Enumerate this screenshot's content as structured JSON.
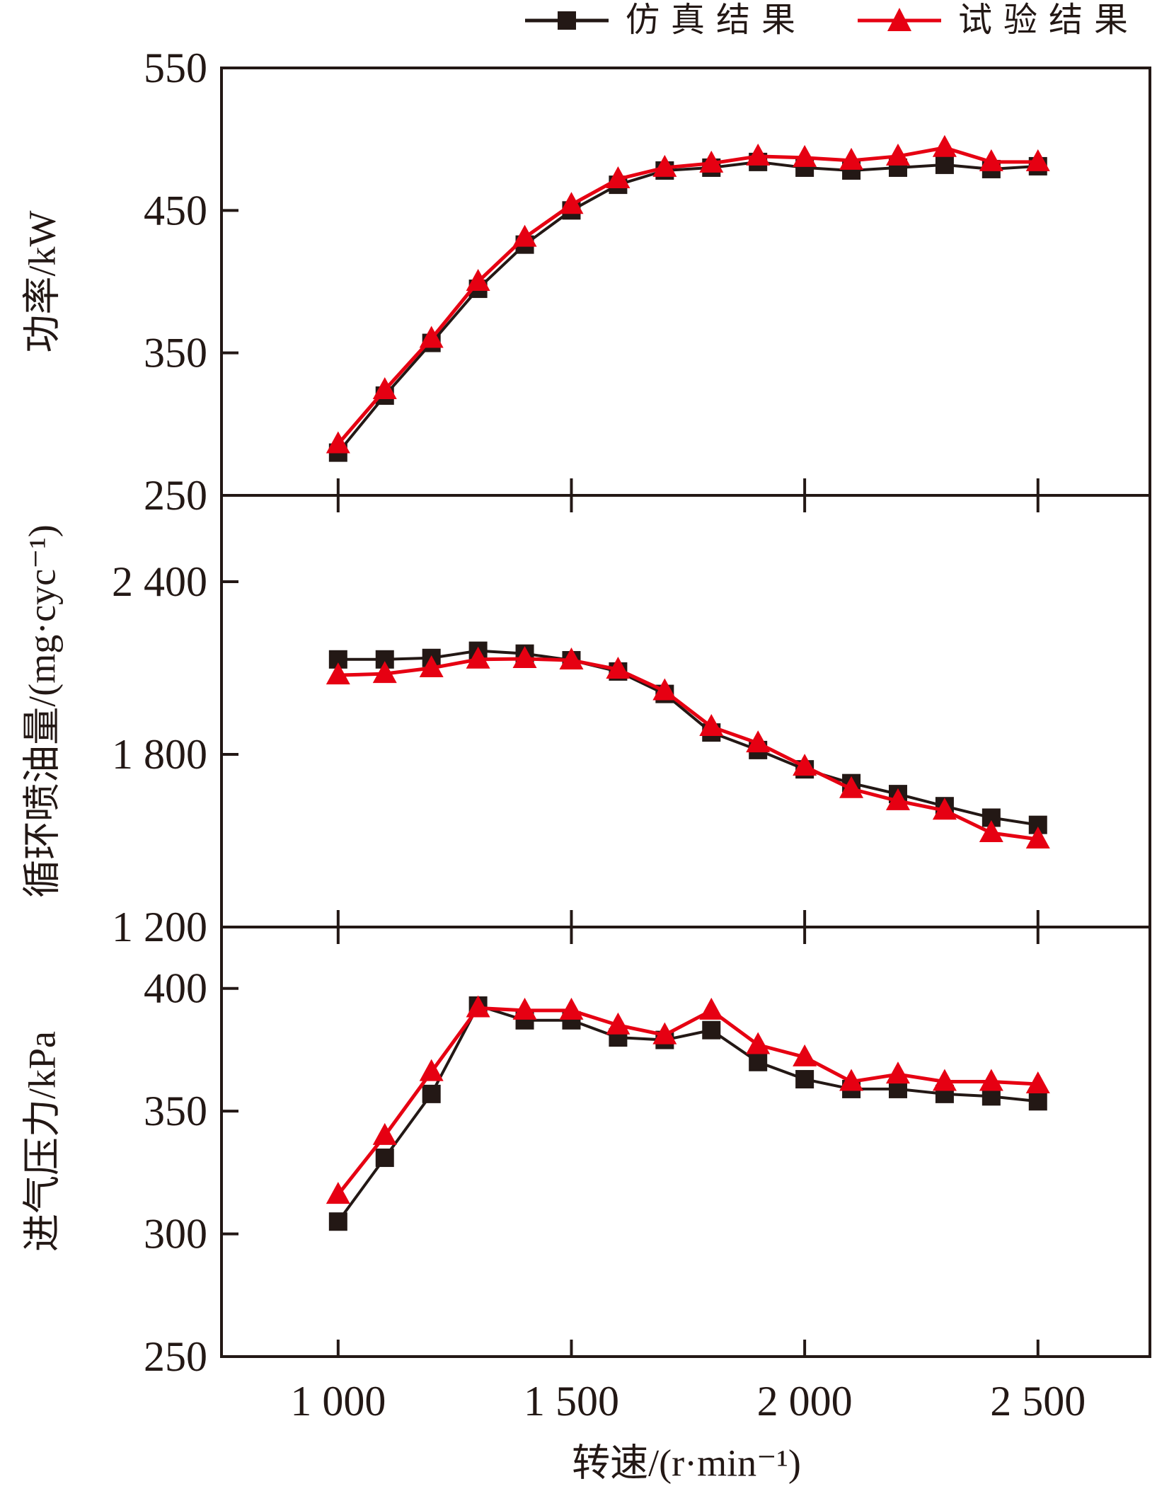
{
  "colors": {
    "simulation": "#231815",
    "test": "#e60012",
    "axis": "#231815",
    "background": "#ffffff"
  },
  "legend": {
    "items": [
      {
        "label": "仿真结果",
        "marker": "square",
        "color": "#231815"
      },
      {
        "label": "试验结果",
        "marker": "triangle",
        "color": "#e60012"
      }
    ]
  },
  "xaxis": {
    "label": "转速/(r·min⁻¹)",
    "xlim": [
      750,
      2740
    ],
    "tick_values": [
      1000,
      1500,
      2000,
      2500
    ],
    "tick_labels": [
      "1 000",
      "1 500",
      "2 000",
      "2 500"
    ],
    "x": [
      1000,
      1100,
      1200,
      1300,
      1400,
      1500,
      1600,
      1700,
      1800,
      1900,
      2000,
      2100,
      2200,
      2300,
      2400,
      2500
    ]
  },
  "chart_data": [
    {
      "type": "line",
      "id": "power",
      "ylabel": "功率/kW",
      "ylim": [
        250,
        550
      ],
      "ytick_values": [
        250,
        350,
        450,
        550
      ],
      "ytick_labels": [
        "250",
        "350",
        "450",
        "550"
      ],
      "grid": false,
      "series": [
        {
          "name": "仿真结果",
          "values": [
            280,
            320,
            357,
            395,
            426,
            450,
            468,
            478,
            480,
            484,
            480,
            478,
            480,
            482,
            479,
            481
          ]
        },
        {
          "name": "试验结果",
          "values": [
            286,
            324,
            360,
            400,
            431,
            454,
            472,
            480,
            483,
            488,
            487,
            485,
            488,
            494,
            484,
            484
          ]
        }
      ]
    },
    {
      "type": "line",
      "id": "fuel-per-cycle",
      "ylabel": "循环喷油量/(mg·cyc⁻¹)",
      "ylim": [
        1200,
        2700
      ],
      "ytick_values": [
        1200,
        1800,
        2400
      ],
      "ytick_labels": [
        "1 200",
        "1 800",
        "2 400"
      ],
      "grid": false,
      "series": [
        {
          "name": "仿真结果",
          "values": [
            2130,
            2130,
            2135,
            2160,
            2150,
            2127,
            2088,
            2010,
            1876,
            1815,
            1748,
            1700,
            1662,
            1620,
            1580,
            1555
          ]
        },
        {
          "name": "试验结果",
          "values": [
            2075,
            2080,
            2100,
            2130,
            2132,
            2127,
            2095,
            2020,
            1896,
            1839,
            1758,
            1680,
            1638,
            1605,
            1527,
            1505
          ]
        }
      ]
    },
    {
      "type": "line",
      "id": "intake-pressure",
      "ylabel": "进气压力/kPa",
      "ylim": [
        250,
        425
      ],
      "ytick_values": [
        250,
        300,
        350,
        400
      ],
      "ytick_labels": [
        "250",
        "300",
        "350",
        "400"
      ],
      "grid": false,
      "series": [
        {
          "name": "仿真结果",
          "values": [
            305,
            331,
            357,
            393,
            387,
            387,
            380,
            379,
            383,
            370,
            363,
            359,
            359,
            357,
            356,
            354
          ]
        },
        {
          "name": "试验结果",
          "values": [
            316,
            340,
            366,
            392,
            391,
            391,
            385,
            381,
            391,
            377,
            372,
            362,
            365,
            362,
            362,
            361
          ]
        }
      ]
    }
  ]
}
